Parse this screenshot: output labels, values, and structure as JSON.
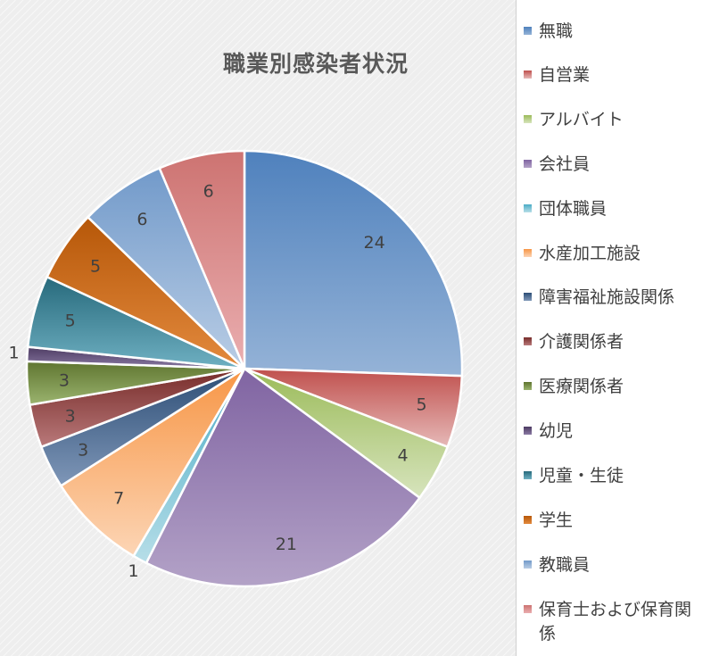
{
  "chart_data": {
    "type": "pie",
    "title": "職業別感染者状況",
    "legend_position": "right",
    "categories": [
      "無職",
      "自営業",
      "アルバイト",
      "会社員",
      "団体職員",
      "水産加工施設",
      "障害福祉施設関係",
      "介護関係者",
      "医療関係者",
      "幼児",
      "児童・生徒",
      "学生",
      "教職員",
      "保育士および保育関係"
    ],
    "values": [
      24,
      5,
      4,
      21,
      1,
      7,
      3,
      3,
      3,
      1,
      5,
      5,
      6,
      6
    ],
    "colors": [
      "#4f81bd",
      "#c0504d",
      "#9bbb59",
      "#8064a2",
      "#4bacc6",
      "#f79646",
      "#2c4d75",
      "#772c2a",
      "#5f7530",
      "#4d3b62",
      "#276a7c",
      "#b65708",
      "#729aca",
      "#cd7371"
    ],
    "colors_light": [
      "#95b3d7",
      "#e6b9b8",
      "#d7e4bd",
      "#b3a2c7",
      "#b7dee8",
      "#fcd5b5",
      "#7f97b8",
      "#b9797a",
      "#9bb46f",
      "#8a7aa3",
      "#6fb0c2",
      "#e38a3e",
      "#b9cde5",
      "#eaaeb0"
    ]
  }
}
